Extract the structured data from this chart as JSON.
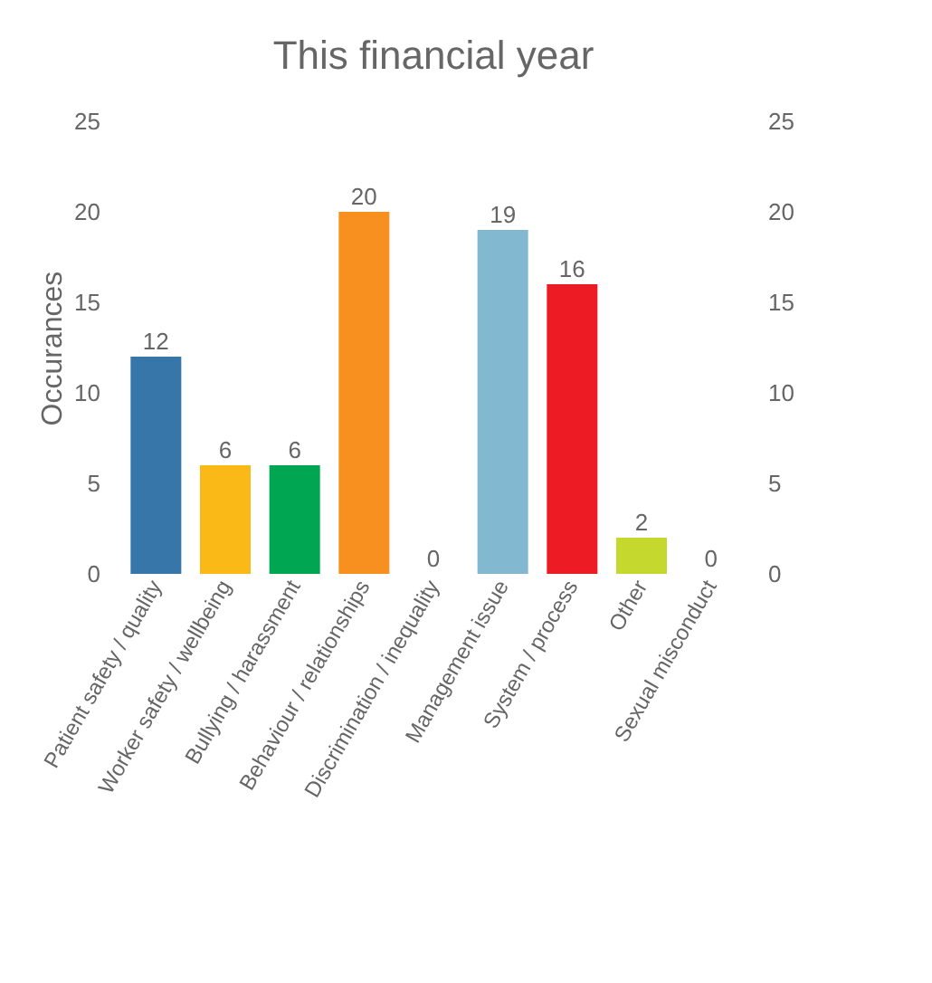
{
  "chart_data": {
    "type": "bar",
    "title": "This financial year",
    "ylabel": "Occurances",
    "categories": [
      "Patient safety / quality",
      "Worker safety / wellbeing",
      "Bullying / harassment",
      "Behaviour / relationships",
      "Discrimination / inequality",
      "Management issue",
      "System / process",
      "Other",
      "Sexual misconduct"
    ],
    "values": [
      12,
      6,
      6,
      20,
      0,
      19,
      16,
      2,
      0
    ],
    "colors": [
      "#3776a8",
      "#fbb917",
      "#00a651",
      "#f7901e",
      "#8e5ea2",
      "#82b9d1",
      "#ed1c24",
      "#c4d82e",
      "#999999"
    ],
    "ylim": [
      0,
      25
    ],
    "yticks": [
      0,
      5,
      10,
      15,
      20,
      25
    ],
    "y2lim": [
      0,
      25
    ],
    "y2ticks": [
      0,
      5,
      10,
      15,
      20,
      25
    ],
    "data_labels": true
  }
}
